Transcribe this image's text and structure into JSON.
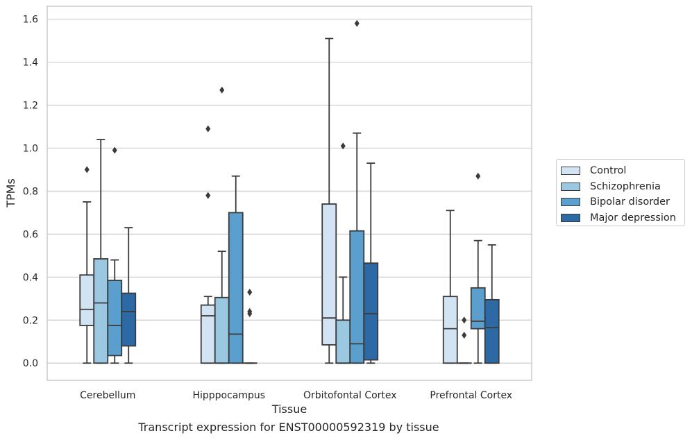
{
  "caption": "Transcript expression for ENST00000592319 by tissue",
  "chart_data": {
    "type": "box",
    "xlabel": "Tissue",
    "ylabel": "TPMs",
    "ylim": [
      -0.08,
      1.66
    ],
    "yticks": [
      0.0,
      0.2,
      0.4,
      0.6,
      0.8,
      1.0,
      1.2,
      1.4,
      1.6
    ],
    "ytick_labels": [
      "0.0",
      "0.2",
      "0.4",
      "0.6",
      "0.8",
      "1.0",
      "1.2",
      "1.4",
      "1.6"
    ],
    "grid": "horizontal",
    "legend_position": "right",
    "categories": [
      "Cerebellum",
      "Hipppocampus",
      "Orbitofontal Cortex",
      "Prefrontal Cortex"
    ],
    "series": [
      {
        "name": "Control",
        "color": "#d2e3f3",
        "boxes": [
          {
            "whislo": 0.0,
            "q1": 0.175,
            "med": 0.25,
            "q3": 0.41,
            "whishi": 0.75,
            "fliers": [
              0.9
            ]
          },
          {
            "whislo": 0.0,
            "q1": 0.0,
            "med": 0.22,
            "q3": 0.27,
            "whishi": 0.31,
            "fliers": [
              0.78,
              1.09
            ]
          },
          {
            "whislo": 0.0,
            "q1": 0.085,
            "med": 0.21,
            "q3": 0.74,
            "whishi": 1.51,
            "fliers": []
          },
          {
            "whislo": 0.0,
            "q1": 0.0,
            "med": 0.16,
            "q3": 0.31,
            "whishi": 0.71,
            "fliers": []
          }
        ]
      },
      {
        "name": "Schizophrenia",
        "color": "#9ac8e0",
        "boxes": [
          {
            "whislo": 0.0,
            "q1": 0.0,
            "med": 0.28,
            "q3": 0.485,
            "whishi": 1.04,
            "fliers": []
          },
          {
            "whislo": 0.0,
            "q1": 0.0,
            "med": 0.0,
            "q3": 0.305,
            "whishi": 0.52,
            "fliers": [
              1.27
            ]
          },
          {
            "whislo": 0.0,
            "q1": 0.0,
            "med": 0.0,
            "q3": 0.2,
            "whishi": 0.4,
            "fliers": [
              1.01
            ]
          },
          {
            "whislo": 0.0,
            "q1": 0.0,
            "med": 0.0,
            "q3": 0.0,
            "whishi": 0.0,
            "fliers": [
              0.13,
              0.2
            ]
          }
        ]
      },
      {
        "name": "Bipolar disorder",
        "color": "#5a9fcd",
        "boxes": [
          {
            "whislo": 0.0,
            "q1": 0.035,
            "med": 0.175,
            "q3": 0.385,
            "whishi": 0.48,
            "fliers": [
              0.99
            ]
          },
          {
            "whislo": 0.0,
            "q1": 0.0,
            "med": 0.135,
            "q3": 0.7,
            "whishi": 0.87,
            "fliers": []
          },
          {
            "whislo": 0.0,
            "q1": 0.0,
            "med": 0.09,
            "q3": 0.615,
            "whishi": 1.07,
            "fliers": [
              1.58
            ]
          },
          {
            "whislo": 0.0,
            "q1": 0.16,
            "med": 0.195,
            "q3": 0.35,
            "whishi": 0.57,
            "fliers": [
              0.87
            ]
          }
        ]
      },
      {
        "name": "Major depression",
        "color": "#2c69a5",
        "boxes": [
          {
            "whislo": 0.0,
            "q1": 0.08,
            "med": 0.24,
            "q3": 0.325,
            "whishi": 0.63,
            "fliers": []
          },
          {
            "whislo": 0.0,
            "q1": 0.0,
            "med": 0.0,
            "q3": 0.0,
            "whishi": 0.0,
            "fliers": [
              0.23,
              0.24,
              0.33
            ]
          },
          {
            "whislo": 0.0,
            "q1": 0.015,
            "med": 0.23,
            "q3": 0.465,
            "whishi": 0.93,
            "fliers": []
          },
          {
            "whislo": 0.0,
            "q1": 0.0,
            "med": 0.165,
            "q3": 0.295,
            "whishi": 0.55,
            "fliers": []
          }
        ]
      }
    ]
  }
}
